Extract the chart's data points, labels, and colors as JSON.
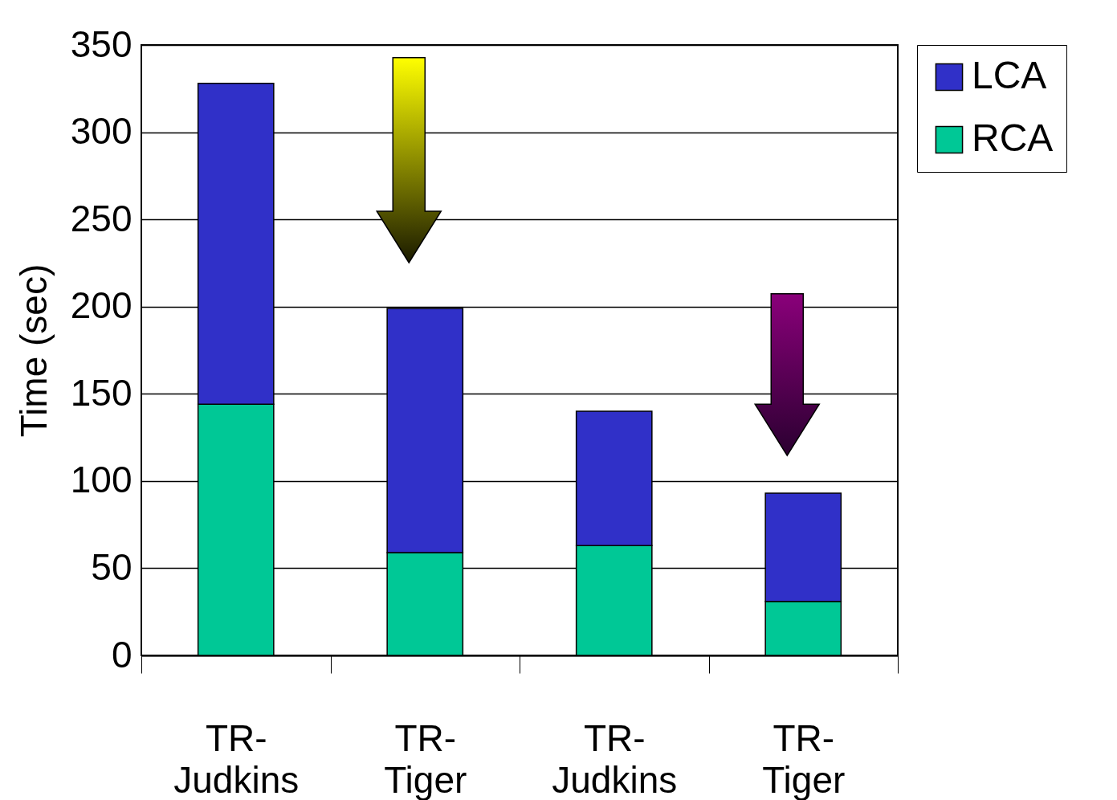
{
  "chart_data": {
    "type": "bar",
    "stacked": true,
    "ylabel": "Time (sec)",
    "categories": [
      "TR-Judkins",
      "TR-Tiger",
      "TR-Judkins",
      "TR-Tiger"
    ],
    "series": [
      {
        "name": "RCA",
        "color": "#00c896",
        "values": [
          144,
          59,
          63,
          31
        ]
      },
      {
        "name": "LCA",
        "color": "#3030c8",
        "values": [
          184,
          140,
          77,
          62
        ]
      }
    ],
    "ylim": [
      0,
      350
    ],
    "yticks": [
      0,
      50,
      100,
      150,
      200,
      250,
      300,
      350
    ],
    "grid": "y",
    "legend": "right"
  }
}
